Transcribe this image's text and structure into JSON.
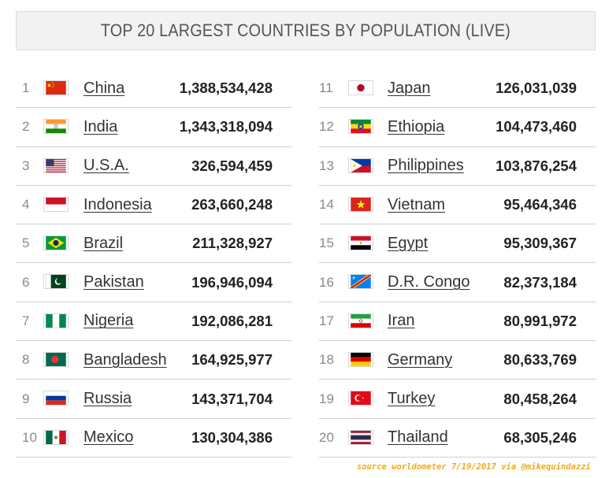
{
  "header": {
    "title": "TOP 20 LARGEST COUNTRIES BY POPULATION (LIVE)"
  },
  "countries": [
    {
      "rank": "1",
      "name": "China",
      "population": "1,388,534,428",
      "flag": "china-flag-icon"
    },
    {
      "rank": "2",
      "name": "India",
      "population": "1,343,318,094",
      "flag": "india-flag-icon"
    },
    {
      "rank": "3",
      "name": "U.S.A.",
      "population": "326,594,459",
      "flag": "usa-flag-icon"
    },
    {
      "rank": "4",
      "name": "Indonesia",
      "population": "263,660,248",
      "flag": "indonesia-flag-icon"
    },
    {
      "rank": "5",
      "name": "Brazil",
      "population": "211,328,927",
      "flag": "brazil-flag-icon"
    },
    {
      "rank": "6",
      "name": "Pakistan",
      "population": "196,946,094",
      "flag": "pakistan-flag-icon"
    },
    {
      "rank": "7",
      "name": "Nigeria",
      "population": "192,086,281",
      "flag": "nigeria-flag-icon"
    },
    {
      "rank": "8",
      "name": "Bangladesh",
      "population": "164,925,977",
      "flag": "bangladesh-flag-icon"
    },
    {
      "rank": "9",
      "name": "Russia",
      "population": "143,371,704",
      "flag": "russia-flag-icon"
    },
    {
      "rank": "10",
      "name": "Mexico",
      "population": "130,304,386",
      "flag": "mexico-flag-icon"
    },
    {
      "rank": "11",
      "name": "Japan",
      "population": "126,031,039",
      "flag": "japan-flag-icon"
    },
    {
      "rank": "12",
      "name": "Ethiopia",
      "population": "104,473,460",
      "flag": "ethiopia-flag-icon"
    },
    {
      "rank": "13",
      "name": "Philippines",
      "population": "103,876,254",
      "flag": "philippines-flag-icon"
    },
    {
      "rank": "14",
      "name": "Vietnam",
      "population": "95,464,346",
      "flag": "vietnam-flag-icon"
    },
    {
      "rank": "15",
      "name": "Egypt",
      "population": "95,309,367",
      "flag": "egypt-flag-icon"
    },
    {
      "rank": "16",
      "name": "D.R. Congo",
      "population": "82,373,184",
      "flag": "dr-congo-flag-icon"
    },
    {
      "rank": "17",
      "name": "Iran",
      "population": "80,991,972",
      "flag": "iran-flag-icon"
    },
    {
      "rank": "18",
      "name": "Germany",
      "population": "80,633,769",
      "flag": "germany-flag-icon"
    },
    {
      "rank": "19",
      "name": "Turkey",
      "population": "80,458,264",
      "flag": "turkey-flag-icon"
    },
    {
      "rank": "20",
      "name": "Thailand",
      "population": "68,305,246",
      "flag": "thailand-flag-icon"
    }
  ],
  "source": "source worldometer 7/19/2017 via @mikequindazzi"
}
